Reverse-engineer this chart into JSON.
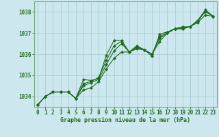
{
  "title": "Graphe pression niveau de la mer (hPa)",
  "background_color": "#cce8ee",
  "grid_color": "#aacdd6",
  "line_color": "#1e6b1e",
  "spine_color": "#7aaa7a",
  "x_values": [
    0,
    1,
    2,
    3,
    4,
    5,
    6,
    7,
    8,
    9,
    10,
    11,
    12,
    13,
    14,
    15,
    16,
    17,
    18,
    19,
    20,
    21,
    22,
    23
  ],
  "series1": [
    1033.6,
    1034.0,
    1034.2,
    1034.2,
    1034.2,
    1033.9,
    1034.8,
    1034.75,
    1034.85,
    1035.95,
    1036.65,
    1036.65,
    1036.1,
    1036.4,
    1036.2,
    1035.9,
    1036.95,
    1037.05,
    1037.2,
    1037.25,
    1037.3,
    1037.55,
    1038.05,
    1037.8
  ],
  "series2": [
    1033.6,
    1034.0,
    1034.2,
    1034.2,
    1034.2,
    1033.9,
    1034.5,
    1034.65,
    1034.8,
    1035.5,
    1036.15,
    1036.5,
    1036.1,
    1036.25,
    1036.2,
    1036.0,
    1036.75,
    1037.0,
    1037.2,
    1037.2,
    1037.3,
    1037.6,
    1038.1,
    1037.8
  ],
  "series3": [
    1033.6,
    1034.0,
    1034.2,
    1034.2,
    1034.2,
    1033.9,
    1034.3,
    1034.4,
    1034.7,
    1035.3,
    1035.8,
    1036.1,
    1036.1,
    1036.3,
    1036.2,
    1036.0,
    1036.6,
    1037.0,
    1037.2,
    1037.3,
    1037.3,
    1037.5,
    1037.85,
    1037.8
  ],
  "series4": [
    1033.6,
    1034.0,
    1034.2,
    1034.2,
    1034.2,
    1033.9,
    1034.6,
    1034.7,
    1034.9,
    1035.7,
    1036.4,
    1036.6,
    1036.1,
    1036.35,
    1036.2,
    1036.0,
    1036.85,
    1037.0,
    1037.2,
    1037.2,
    1037.3,
    1037.6,
    1038.0,
    1037.8
  ],
  "ylim": [
    1033.5,
    1038.5
  ],
  "yticks": [
    1034,
    1035,
    1036,
    1037,
    1038
  ],
  "xticks": [
    0,
    1,
    2,
    3,
    4,
    5,
    6,
    7,
    8,
    9,
    10,
    11,
    12,
    13,
    14,
    15,
    16,
    17,
    18,
    19,
    20,
    21,
    22,
    23
  ],
  "marker": "D",
  "markersize": 2.2,
  "linewidth": 0.8,
  "tick_fontsize": 5.5,
  "label_fontsize": 6.0
}
